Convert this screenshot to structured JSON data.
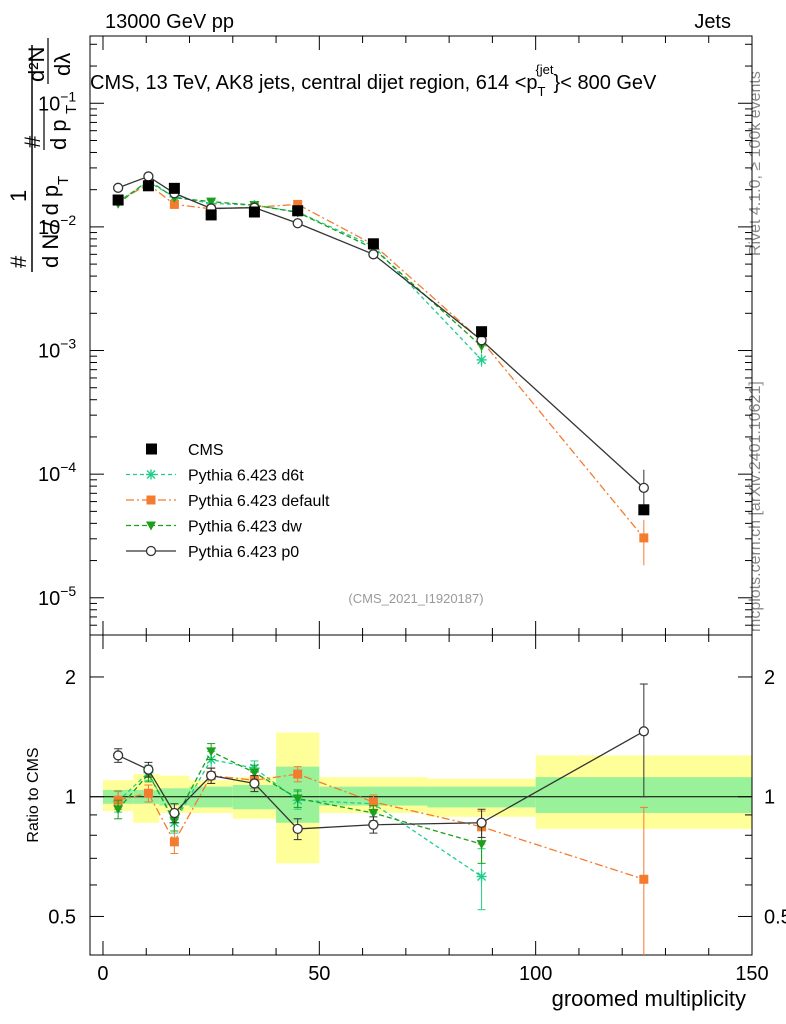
{
  "header": {
    "left": "13000 GeV pp",
    "right": "Jets"
  },
  "side_labels": {
    "rivet": "Rivet 4.1.0, ≥ 100k events",
    "mcplots": "mcplots.cern.ch [arXiv:2401.10621]"
  },
  "chart_data": {
    "type": "line",
    "title": "CMS, 13 TeV, AK8 jets, central dijet region, 614 < p_T^{jet} < 800 GeV",
    "title_parts": {
      "pre": "CMS, 13 TeV, AK8 jets, central dijet region, 614 <p",
      "sub": "T",
      "sup": "{jet",
      "post": "}< 800 GeV"
    },
    "ylabel_parts": {
      "one": "1",
      "n": "#",
      "dN": "d N / d p",
      "T": "T",
      "d2N": "d²N",
      "dpT": "d p",
      "dlambda": "dλ"
    },
    "xlabel": "groomed multiplicity",
    "ratio_ylabel": "Ratio to CMS",
    "watermark": "(CMS_2021_I1920187)",
    "x_range": [
      -3,
      150
    ],
    "x_ticks": [
      0,
      50,
      100,
      150
    ],
    "main": {
      "scale": "log",
      "y_range": [
        5e-06,
        0.35
      ],
      "y_ticks": [
        {
          "value": 0.1,
          "base": "10",
          "exp": "−1"
        },
        {
          "value": 0.01,
          "base": "10",
          "exp": "−2"
        },
        {
          "value": 0.001,
          "base": "10",
          "exp": "−3"
        },
        {
          "value": 0.0001,
          "base": "10",
          "exp": "−4"
        },
        {
          "value": 1e-05,
          "base": "10",
          "exp": "−5"
        }
      ]
    },
    "ratio": {
      "scale": "log",
      "y_range": [
        0.4,
        2.55
      ],
      "y_ticks": [
        {
          "value": 0.5,
          "label": "0.5"
        },
        {
          "value": 1,
          "label": "1"
        },
        {
          "value": 2,
          "label": "2"
        }
      ]
    },
    "bins": [
      {
        "lo": 0,
        "hi": 7
      },
      {
        "lo": 7,
        "hi": 13
      },
      {
        "lo": 13,
        "hi": 20
      },
      {
        "lo": 20,
        "hi": 30
      },
      {
        "lo": 30,
        "hi": 40
      },
      {
        "lo": 40,
        "hi": 50
      },
      {
        "lo": 50,
        "hi": 75
      },
      {
        "lo": 75,
        "hi": 100
      },
      {
        "lo": 100,
        "hi": 150
      }
    ],
    "data_x": [
      3.5,
      10.5,
      16.5,
      25,
      35,
      45,
      62.5,
      87.5,
      125
    ],
    "data": {
      "name": "CMS",
      "color": "#000000",
      "values": [
        0.0165,
        0.0215,
        0.0205,
        0.0125,
        0.0132,
        0.0135,
        0.0073,
        0.00142,
        5.15e-05
      ],
      "band_inner": [
        [
          0.96,
          1.04
        ],
        [
          0.96,
          1.04
        ],
        [
          0.95,
          1.05
        ],
        [
          0.94,
          1.06
        ],
        [
          0.93,
          1.07
        ],
        [
          0.86,
          1.19
        ],
        [
          0.95,
          1.06
        ],
        [
          0.94,
          1.06
        ],
        [
          0.91,
          1.12
        ]
      ],
      "band_outer": [
        [
          0.92,
          1.1
        ],
        [
          0.86,
          1.14
        ],
        [
          0.91,
          1.13
        ],
        [
          0.91,
          1.1
        ],
        [
          0.88,
          1.12
        ],
        [
          0.68,
          1.45
        ],
        [
          0.91,
          1.12
        ],
        [
          0.89,
          1.11
        ],
        [
          0.83,
          1.27
        ]
      ],
      "band_inner_color": "#99f299",
      "band_outer_color": "#ffff99"
    },
    "series": [
      {
        "name": "Pythia 6.423 d6t",
        "color": "#1fce8a",
        "dash": "4,3",
        "marker": "star",
        "values": [
          0.0161,
          0.0231,
          0.0175,
          0.0155,
          0.015,
          0.0132,
          0.007,
          0.00084,
          null
        ],
        "ratio": [
          0.975,
          1.15,
          0.86,
          1.24,
          1.18,
          0.98,
          0.96,
          0.63,
          null
        ],
        "ratio_err": [
          0.06,
          0.05,
          0.05,
          0.06,
          0.05,
          0.05,
          0.05,
          0.11,
          null
        ]
      },
      {
        "name": "Pythia 6.423 default",
        "color": "#f47c2f",
        "dash": "8,3,2,3",
        "marker": "square",
        "values": [
          0.0162,
          0.0221,
          0.0152,
          0.014,
          0.0144,
          0.0152,
          0.0072,
          0.0012,
          3.05e-05
        ],
        "ratio": [
          0.98,
          1.02,
          0.77,
          1.13,
          1.1,
          1.14,
          0.97,
          0.84,
          0.62
        ],
        "ratio_err": [
          0.05,
          0.05,
          0.05,
          0.05,
          0.05,
          0.05,
          0.04,
          0.08,
          0.32
        ]
      },
      {
        "name": "Pythia 6.423 dw",
        "color": "#1aa01a",
        "dash": "5,3",
        "marker": "triangle",
        "values": [
          0.0154,
          0.0239,
          0.0172,
          0.016,
          0.015,
          0.0131,
          0.0067,
          0.00108,
          null
        ],
        "ratio": [
          0.93,
          1.14,
          0.87,
          1.3,
          1.15,
          0.99,
          0.91,
          0.76,
          null
        ],
        "ratio_err": [
          0.05,
          0.05,
          0.05,
          0.06,
          0.05,
          0.05,
          0.04,
          0.08,
          null
        ]
      },
      {
        "name": "Pythia 6.423 p0",
        "color": "#333333",
        "dash": "",
        "marker": "circle",
        "values": [
          0.0207,
          0.0256,
          0.0187,
          0.0141,
          0.0143,
          0.0107,
          0.006,
          0.00121,
          7.75e-05
        ],
        "ratio": [
          1.27,
          1.17,
          0.91,
          1.13,
          1.08,
          0.83,
          0.85,
          0.86,
          1.46
        ],
        "ratio_err": [
          0.05,
          0.05,
          0.05,
          0.05,
          0.05,
          0.05,
          0.04,
          0.07,
          0.46
        ]
      }
    ],
    "legend": [
      {
        "name": "CMS"
      },
      {
        "name": "Pythia 6.423 d6t"
      },
      {
        "name": "Pythia 6.423 default"
      },
      {
        "name": "Pythia 6.423 dw"
      },
      {
        "name": "Pythia 6.423 p0"
      }
    ]
  }
}
